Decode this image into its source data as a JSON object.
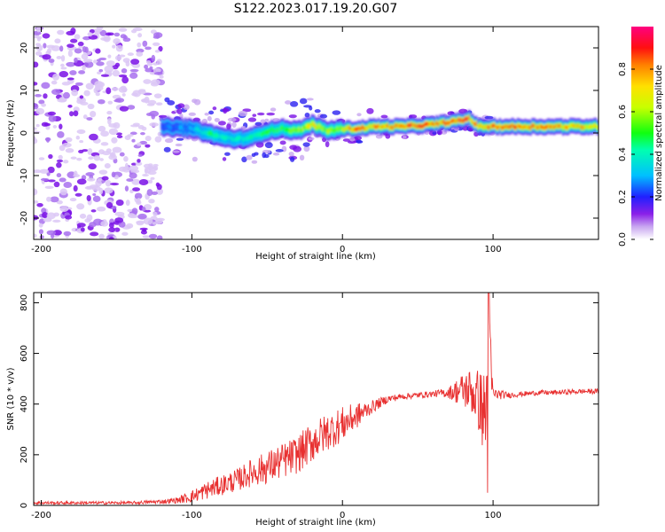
{
  "figure": {
    "title": "S122.2023.017.19.20.G07"
  },
  "chart_data": [
    {
      "type": "heatmap",
      "title": "S122.2023.017.19.20.G07",
      "xlabel": "Height of straight line (km)",
      "ylabel": "Frequency (Hz)",
      "xlim": [
        -205,
        170
      ],
      "ylim": [
        -25,
        25
      ],
      "xticks": [
        -200,
        -100,
        0,
        100
      ],
      "yticks": [
        -20,
        -10,
        0,
        10,
        20
      ],
      "colorbar": {
        "label": "Normalized spectral amplitude",
        "range": [
          0,
          1
        ],
        "ticks": [
          0.0,
          0.2,
          0.4,
          0.6,
          0.8
        ]
      },
      "ridge": {
        "x": [
          -120,
          -100,
          -90,
          -80,
          -70,
          -60,
          -50,
          -40,
          -30,
          -20,
          -10,
          0,
          10,
          20,
          40,
          60,
          70,
          80,
          84,
          90,
          100,
          120,
          140,
          170
        ],
        "freq": [
          1.5,
          1.0,
          0.0,
          -1.0,
          -1.5,
          -1.0,
          0.5,
          1.0,
          0.5,
          2.0,
          0.5,
          1.0,
          1.0,
          1.5,
          1.5,
          2.0,
          2.5,
          3.0,
          3.5,
          1.5,
          1.5,
          1.5,
          1.5,
          1.5
        ],
        "amplitude": [
          0.25,
          0.3,
          0.45,
          0.4,
          0.4,
          0.4,
          0.5,
          0.5,
          0.55,
          0.7,
          0.6,
          0.65,
          0.9,
          0.75,
          0.85,
          0.85,
          0.85,
          0.95,
          0.8,
          0.75,
          0.85,
          0.85,
          0.8,
          0.7
        ]
      },
      "noise_region": [
        -205,
        -120
      ]
    },
    {
      "type": "line",
      "xlabel": "Height of straight line (km)",
      "ylabel": "SNR (10 * v/v)",
      "xlim": [
        -205,
        170
      ],
      "ylim": [
        0,
        840
      ],
      "xticks": [
        -200,
        -100,
        0,
        100
      ],
      "yticks": [
        0,
        200,
        400,
        600,
        800
      ],
      "series": [
        {
          "name": "SNR",
          "color": "#e83030",
          "x": [
            -205,
            -180,
            -160,
            -140,
            -120,
            -110,
            -100,
            -90,
            -80,
            -70,
            -60,
            -50,
            -40,
            -30,
            -20,
            -10,
            0,
            10,
            20,
            30,
            40,
            50,
            60,
            70,
            80,
            85,
            90,
            95,
            97,
            100,
            110,
            120,
            130,
            140,
            150,
            160,
            170
          ],
          "y": [
            10,
            10,
            10,
            10,
            15,
            20,
            35,
            60,
            80,
            100,
            130,
            150,
            175,
            200,
            250,
            290,
            320,
            355,
            390,
            420,
            430,
            435,
            440,
            445,
            455,
            455,
            420,
            350,
            600,
            440,
            435,
            440,
            445,
            445,
            448,
            450,
            450
          ],
          "noise": [
            6,
            6,
            6,
            6,
            8,
            12,
            25,
            35,
            40,
            45,
            55,
            65,
            70,
            75,
            80,
            75,
            70,
            50,
            25,
            15,
            12,
            12,
            12,
            20,
            70,
            90,
            120,
            180,
            260,
            25,
            12,
            10,
            10,
            10,
            10,
            10,
            10
          ]
        }
      ]
    }
  ]
}
